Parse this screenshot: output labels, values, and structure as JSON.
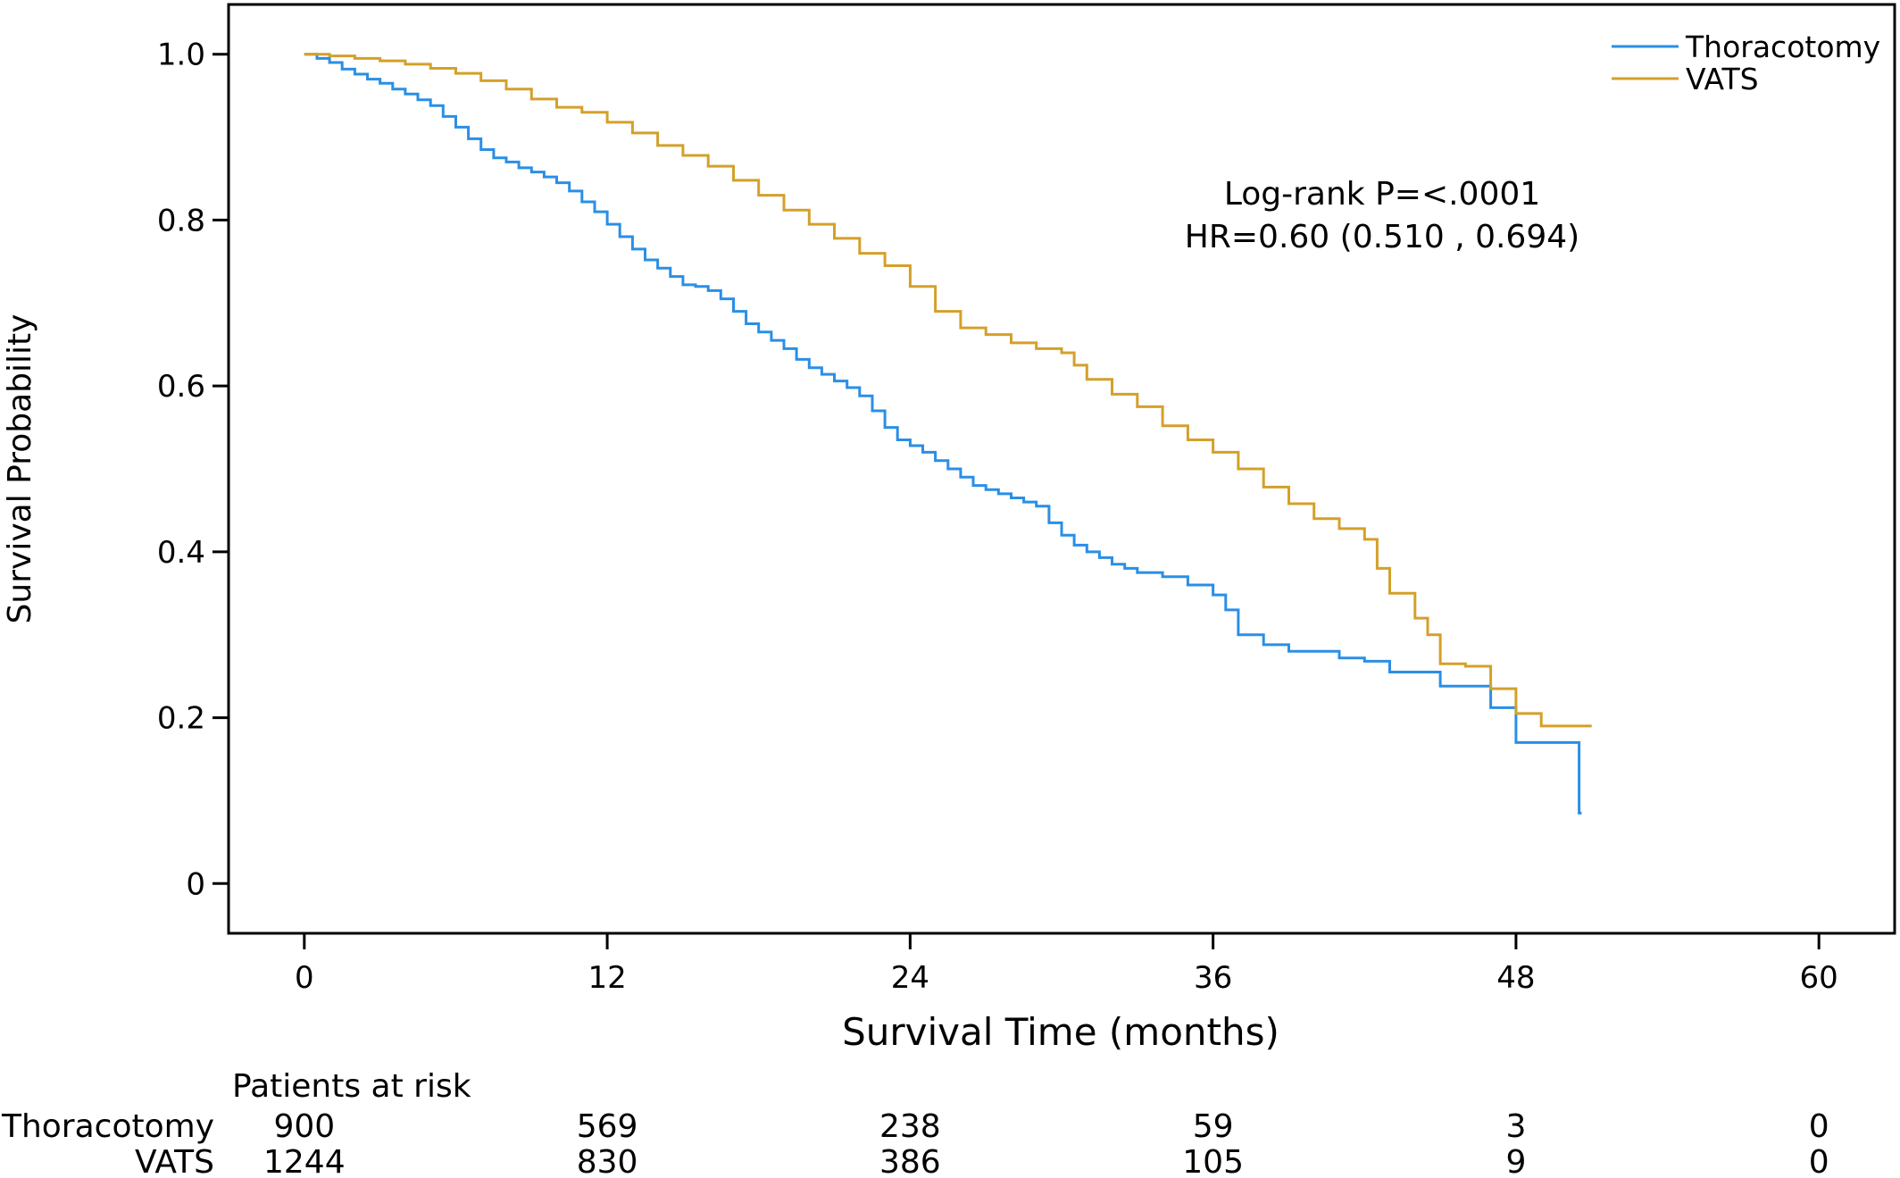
{
  "chart_data": {
    "type": "line",
    "xlabel": "Survival Time (months)",
    "ylabel": "Survival Probability",
    "xlim": [
      -3,
      63
    ],
    "ylim": [
      -0.06,
      1.06
    ],
    "x_ticks": [
      0,
      12,
      24,
      36,
      48,
      60
    ],
    "y_ticks": [
      0,
      0.2,
      0.4,
      0.6,
      0.8,
      1.0
    ],
    "y_tick_labels": [
      "0",
      "0.2",
      "0.4",
      "0.6",
      "0.8",
      "1.0"
    ],
    "grid": false,
    "legend_position": "top-right",
    "annotation": {
      "line1": "Log-rank P=<.0001",
      "line2": "HR=0.60 (0.510 , 0.694)"
    },
    "series": [
      {
        "name": "Thoracotomy",
        "color": "#2a8fe6",
        "step": true,
        "x": [
          0,
          0.5,
          1,
          1.5,
          2,
          2.5,
          3,
          3.5,
          4,
          4.5,
          5,
          5.5,
          6,
          6.5,
          7,
          7.5,
          8,
          8.5,
          9,
          9.5,
          10,
          10.5,
          11,
          11.5,
          12,
          12.5,
          13,
          13.5,
          14,
          14.5,
          15,
          15.5,
          16,
          16.5,
          17,
          17.5,
          18,
          18.5,
          19,
          19.5,
          20,
          20.5,
          21,
          21.5,
          22,
          22.5,
          23,
          23.5,
          24,
          24.5,
          25,
          25.5,
          26,
          26.5,
          27,
          27.5,
          28,
          28.5,
          29,
          29.5,
          30,
          30.5,
          31,
          31.5,
          32,
          32.5,
          33,
          34,
          35,
          36,
          36.5,
          37,
          38,
          39,
          41,
          42,
          43,
          45,
          47,
          48,
          50.5,
          50.6
        ],
        "y": [
          1.0,
          0.995,
          0.99,
          0.982,
          0.976,
          0.97,
          0.965,
          0.958,
          0.952,
          0.945,
          0.938,
          0.925,
          0.912,
          0.898,
          0.885,
          0.875,
          0.87,
          0.863,
          0.858,
          0.852,
          0.845,
          0.835,
          0.822,
          0.81,
          0.795,
          0.78,
          0.765,
          0.752,
          0.742,
          0.732,
          0.722,
          0.72,
          0.715,
          0.705,
          0.69,
          0.675,
          0.665,
          0.655,
          0.645,
          0.632,
          0.622,
          0.614,
          0.606,
          0.598,
          0.588,
          0.57,
          0.55,
          0.535,
          0.528,
          0.52,
          0.51,
          0.5,
          0.49,
          0.48,
          0.475,
          0.47,
          0.465,
          0.46,
          0.455,
          0.435,
          0.42,
          0.408,
          0.4,
          0.393,
          0.385,
          0.38,
          0.375,
          0.37,
          0.36,
          0.348,
          0.33,
          0.3,
          0.288,
          0.28,
          0.272,
          0.268,
          0.255,
          0.238,
          0.212,
          0.17,
          0.085,
          0.085
        ]
      },
      {
        "name": "VATS",
        "color": "#d4a02a",
        "step": true,
        "x": [
          0,
          1,
          2,
          3,
          4,
          5,
          6,
          7,
          8,
          9,
          10,
          11,
          12,
          13,
          14,
          15,
          16,
          17,
          18,
          19,
          20,
          21,
          22,
          23,
          24,
          25,
          26,
          27,
          28,
          29,
          30,
          30.5,
          31,
          32,
          33,
          34,
          35,
          36,
          37,
          38,
          39,
          40,
          41,
          42,
          42.5,
          43,
          44,
          44.5,
          45,
          46,
          47,
          48,
          49,
          50,
          51
        ],
        "y": [
          1.0,
          0.998,
          0.995,
          0.992,
          0.988,
          0.983,
          0.977,
          0.968,
          0.958,
          0.946,
          0.936,
          0.93,
          0.918,
          0.905,
          0.89,
          0.878,
          0.865,
          0.848,
          0.83,
          0.812,
          0.795,
          0.778,
          0.76,
          0.745,
          0.72,
          0.69,
          0.67,
          0.662,
          0.652,
          0.645,
          0.64,
          0.625,
          0.608,
          0.59,
          0.575,
          0.552,
          0.535,
          0.52,
          0.5,
          0.478,
          0.458,
          0.44,
          0.428,
          0.415,
          0.38,
          0.35,
          0.32,
          0.3,
          0.265,
          0.262,
          0.235,
          0.205,
          0.19,
          0.19,
          0.19
        ]
      }
    ],
    "risk_table": {
      "title": "Patients at risk",
      "times": [
        "0",
        "12",
        "24",
        "36",
        "48",
        "60"
      ],
      "rows": [
        {
          "label": "Thoracotomy",
          "values": [
            "900",
            "569",
            "238",
            "59",
            "3",
            "0"
          ]
        },
        {
          "label": "VATS",
          "values": [
            "1244",
            "830",
            "386",
            "105",
            "9",
            "0"
          ]
        }
      ]
    }
  }
}
